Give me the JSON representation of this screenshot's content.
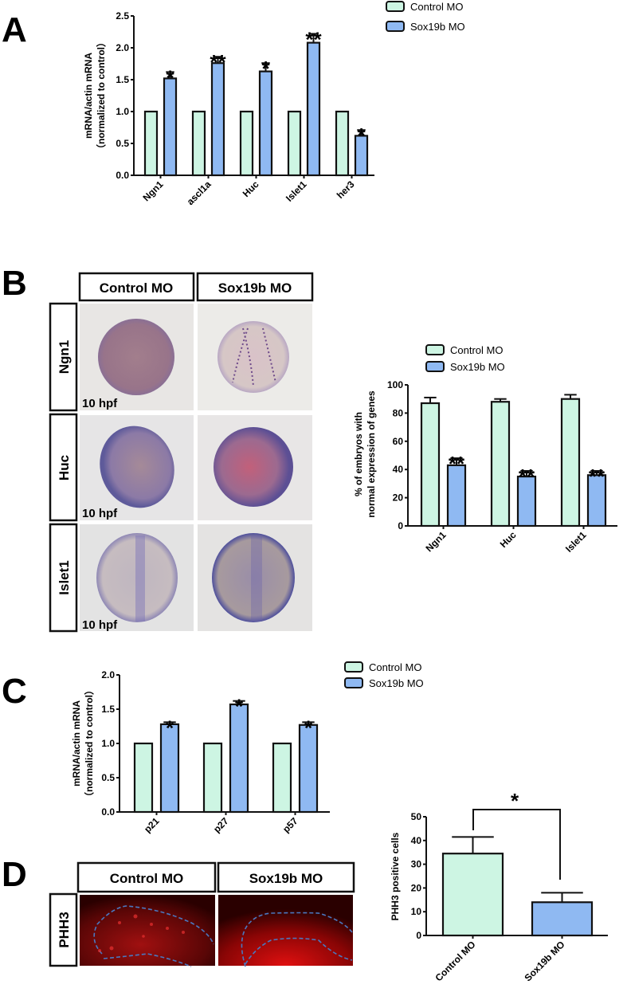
{
  "colors": {
    "control": "#cdf5e3",
    "sox": "#8fb9f2",
    "stroke": "#111111"
  },
  "legend": {
    "control": "Control MO",
    "sox": "Sox19b MO"
  },
  "panels": {
    "A": {
      "letter": "A"
    },
    "B": {
      "letter": "B",
      "col_headers": [
        "Control MO",
        "Sox19b MO"
      ],
      "rows": [
        "Ngn1",
        "Huc",
        "Islet1"
      ],
      "stage": "10 hpf"
    },
    "C": {
      "letter": "C"
    },
    "D": {
      "letter": "D",
      "col_headers": [
        "Control MO",
        "Sox19b MO"
      ],
      "row": "PHH3"
    }
  },
  "chart_data": [
    {
      "id": "A",
      "type": "bar",
      "ylabel": [
        "mRNA/actin mRNA",
        "（normalized to control）"
      ],
      "categories": [
        "Ngn1",
        "ascl1a",
        "Huc",
        "Islet1",
        "her3"
      ],
      "ylim": [
        0,
        2.5
      ],
      "yticks": [
        "0.0",
        "0.5",
        "1.0",
        "1.5",
        "2.0",
        "2.5"
      ],
      "ytick_values": [
        0,
        0.5,
        1.0,
        1.5,
        2.0,
        2.5
      ],
      "legend_position": "top-right",
      "series": [
        {
          "name": "Control MO",
          "values": [
            1,
            1,
            1,
            1,
            1
          ],
          "errors": [
            0,
            0,
            0,
            0,
            0
          ],
          "sig": [
            "",
            "",
            "",
            "",
            ""
          ]
        },
        {
          "name": "Sox19b MO",
          "values": [
            1.52,
            1.76,
            1.63,
            2.08,
            0.62
          ],
          "errors": [
            0.1,
            0.1,
            0.13,
            0.14,
            0.09
          ],
          "sig": [
            "*",
            "**",
            "*",
            "**",
            "*"
          ]
        }
      ]
    },
    {
      "id": "B",
      "type": "bar",
      "ylabel": [
        "% of  embryos with",
        "normal expression of genes"
      ],
      "categories": [
        "Ngn1",
        "Huc",
        "Islet1"
      ],
      "ylim": [
        0,
        100
      ],
      "yticks": [
        "0",
        "20",
        "40",
        "60",
        "80",
        "100"
      ],
      "ytick_values": [
        0,
        20,
        40,
        60,
        80,
        100
      ],
      "legend_position": "top",
      "series": [
        {
          "name": "Control MO",
          "values": [
            87,
            88,
            90
          ],
          "errors": [
            4,
            2,
            3
          ],
          "sig": [
            "",
            "",
            ""
          ]
        },
        {
          "name": "Sox19b MO",
          "values": [
            43,
            35,
            36
          ],
          "errors": [
            5,
            4,
            3
          ],
          "sig": [
            "**",
            "**",
            "**"
          ]
        }
      ]
    },
    {
      "id": "C",
      "type": "bar",
      "ylabel": [
        "mRNA/actin mRNA",
        "（normalized to control）"
      ],
      "categories": [
        "p21",
        "p27",
        "p57"
      ],
      "ylim": [
        0,
        2.0
      ],
      "yticks": [
        "0.0",
        "0.5",
        "1.0",
        "1.5",
        "2.0"
      ],
      "ytick_values": [
        0,
        0.5,
        1.0,
        1.5,
        2.0
      ],
      "legend_position": "top-right",
      "series": [
        {
          "name": "Control MO",
          "values": [
            1,
            1,
            1
          ],
          "errors": [
            0,
            0,
            0
          ],
          "sig": [
            "",
            "",
            ""
          ]
        },
        {
          "name": "Sox19b MO",
          "values": [
            1.28,
            1.57,
            1.27
          ],
          "errors": [
            0.03,
            0.05,
            0.04
          ],
          "sig": [
            "*",
            "*",
            "*"
          ]
        }
      ]
    },
    {
      "id": "D",
      "type": "bar",
      "ylabel": [
        "PHH3 positive cells"
      ],
      "categories": [
        "Control MO",
        "Sox19b MO"
      ],
      "ylim": [
        0,
        50
      ],
      "yticks": [
        "0",
        "10",
        "20",
        "30",
        "40",
        "50"
      ],
      "ytick_values": [
        0,
        10,
        20,
        30,
        40,
        50
      ],
      "values": [
        34.5,
        14
      ],
      "errors": [
        7,
        4
      ],
      "comparison_sig": "*"
    }
  ]
}
